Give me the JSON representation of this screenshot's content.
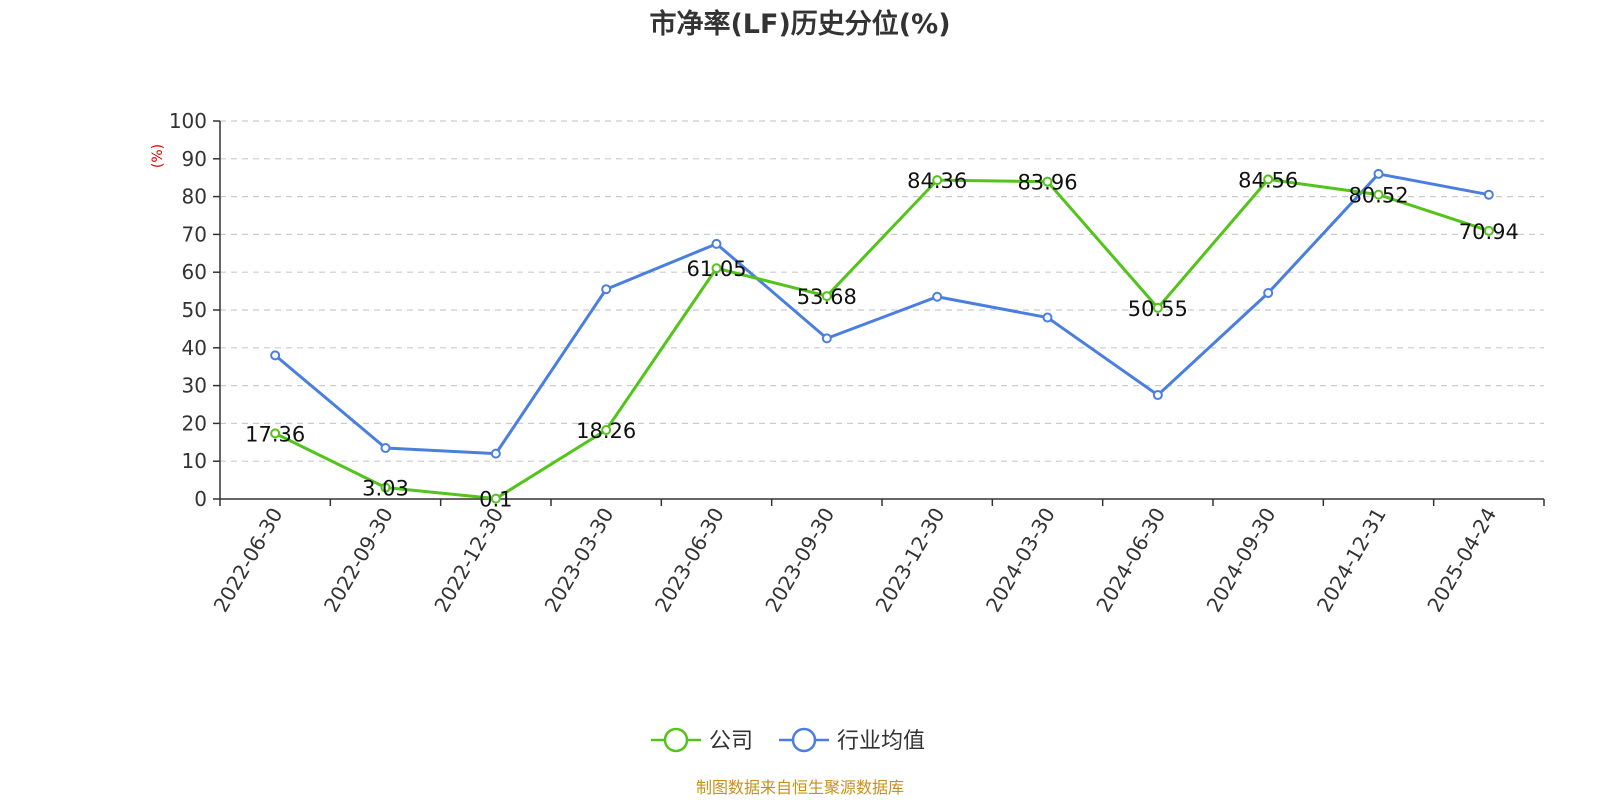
{
  "chart_data": {
    "type": "line",
    "title": "市净率(LF)历史分位(%)",
    "ylabel": "(%)",
    "ylim": [
      0,
      100
    ],
    "y_ticks": [
      0,
      10,
      20,
      30,
      40,
      50,
      60,
      70,
      80,
      90,
      100
    ],
    "grid": true,
    "legend_position": "bottom",
    "categories": [
      "2022-06-30",
      "2022-09-30",
      "2022-12-30",
      "2023-03-30",
      "2023-06-30",
      "2023-09-30",
      "2023-12-30",
      "2024-03-30",
      "2024-06-30",
      "2024-09-30",
      "2024-12-31",
      "2025-04-24"
    ],
    "series": [
      {
        "name": "公司",
        "color": "#52c41a",
        "show_labels": true,
        "values": [
          17.36,
          3.03,
          0.1,
          18.26,
          61.05,
          53.68,
          84.36,
          83.96,
          50.55,
          84.56,
          80.52,
          70.94
        ],
        "labels": [
          "17.36",
          "3.03",
          "0.1",
          "18.26",
          "61.05",
          "53.68",
          "84.36",
          "83.96",
          "50.55",
          "84.56",
          "80.52",
          "70.94"
        ]
      },
      {
        "name": "行业均值",
        "color": "#4a7fe0",
        "show_labels": false,
        "values": [
          38,
          13.5,
          12,
          55.5,
          67.5,
          42.5,
          53.5,
          48,
          27.5,
          54.5,
          86,
          80.5
        ]
      }
    ]
  },
  "source": "制图数据来自恒生聚源数据库"
}
